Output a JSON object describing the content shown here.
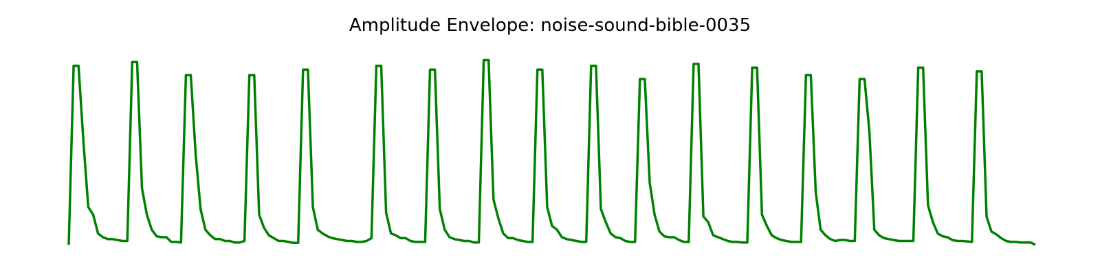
{
  "chart_data": {
    "type": "line",
    "title": "Amplitude Envelope: noise-sound-bible-0035",
    "xlabel": "",
    "ylabel": "",
    "axes_visible": false,
    "grid": false,
    "legend": "none",
    "ylim": [
      0,
      1
    ],
    "line_color": "#008000",
    "series": [
      {
        "values": [
          0.0,
          0.95,
          0.95,
          0.55,
          0.2,
          0.16,
          0.06,
          0.04,
          0.03,
          0.03,
          0.025,
          0.02,
          0.02,
          0.97,
          0.97,
          0.3,
          0.16,
          0.08,
          0.045,
          0.04,
          0.04,
          0.015,
          0.015,
          0.012,
          0.9,
          0.9,
          0.48,
          0.19,
          0.08,
          0.05,
          0.03,
          0.03,
          0.02,
          0.02,
          0.012,
          0.012,
          0.02,
          0.9,
          0.9,
          0.16,
          0.09,
          0.05,
          0.035,
          0.02,
          0.02,
          0.015,
          0.01,
          0.01,
          0.93,
          0.93,
          0.2,
          0.08,
          0.06,
          0.045,
          0.035,
          0.03,
          0.025,
          0.02,
          0.02,
          0.015,
          0.015,
          0.02,
          0.035,
          0.95,
          0.95,
          0.17,
          0.06,
          0.05,
          0.035,
          0.035,
          0.02,
          0.015,
          0.015,
          0.015,
          0.93,
          0.93,
          0.19,
          0.08,
          0.04,
          0.03,
          0.025,
          0.02,
          0.02,
          0.012,
          0.012,
          0.98,
          0.98,
          0.24,
          0.14,
          0.06,
          0.035,
          0.035,
          0.025,
          0.02,
          0.015,
          0.015,
          0.93,
          0.93,
          0.2,
          0.1,
          0.08,
          0.04,
          0.03,
          0.025,
          0.02,
          0.015,
          0.015,
          0.95,
          0.95,
          0.19,
          0.12,
          0.06,
          0.04,
          0.035,
          0.02,
          0.015,
          0.015,
          0.88,
          0.88,
          0.33,
          0.16,
          0.07,
          0.045,
          0.04,
          0.04,
          0.025,
          0.015,
          0.015,
          0.96,
          0.96,
          0.15,
          0.12,
          0.05,
          0.04,
          0.03,
          0.02,
          0.015,
          0.015,
          0.012,
          0.012,
          0.94,
          0.94,
          0.16,
          0.1,
          0.05,
          0.035,
          0.025,
          0.02,
          0.015,
          0.015,
          0.015,
          0.9,
          0.9,
          0.28,
          0.08,
          0.05,
          0.03,
          0.02,
          0.025,
          0.025,
          0.02,
          0.02,
          0.88,
          0.88,
          0.6,
          0.08,
          0.05,
          0.035,
          0.03,
          0.025,
          0.02,
          0.02,
          0.02,
          0.02,
          0.94,
          0.94,
          0.21,
          0.12,
          0.06,
          0.045,
          0.04,
          0.025,
          0.02,
          0.02,
          0.018,
          0.015,
          0.92,
          0.92,
          0.15,
          0.07,
          0.055,
          0.035,
          0.02,
          0.015,
          0.015,
          0.012,
          0.012,
          0.012,
          0.0
        ]
      }
    ]
  }
}
